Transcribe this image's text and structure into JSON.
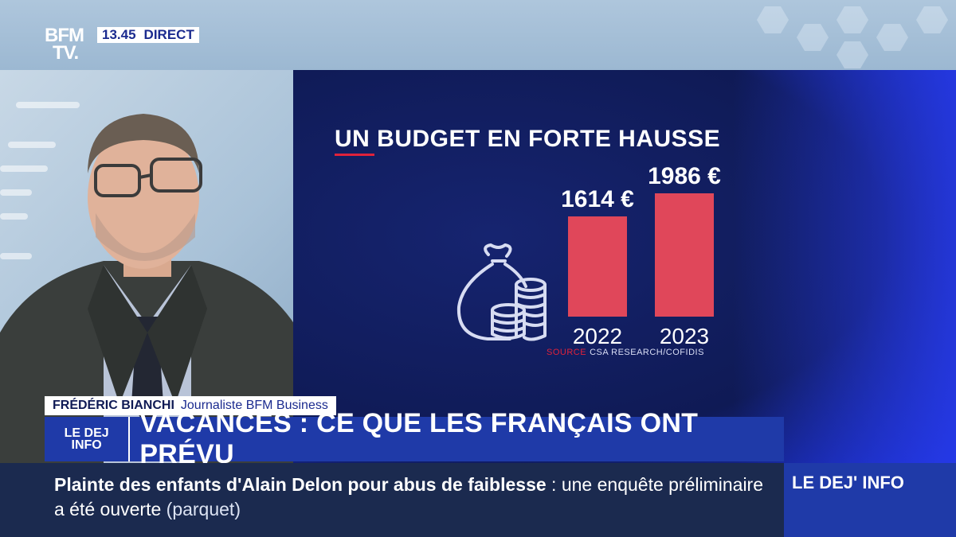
{
  "channel": {
    "logo_line1": "BFM",
    "logo_line2": "TV.",
    "time": "13.45",
    "live_label": "DIRECT"
  },
  "graphic": {
    "title": "UN BUDGET EN FORTE HAUSSE",
    "icon": "money-bag-coins-icon",
    "source_label": "SOURCE",
    "source_text": "CSA RESEARCH/COFIDIS"
  },
  "chart_data": {
    "type": "bar",
    "title": "UN BUDGET EN FORTE HAUSSE",
    "categories": [
      "2022",
      "2023"
    ],
    "values": [
      1614,
      1986
    ],
    "value_labels": [
      "1614 €",
      "1986 €"
    ],
    "bar_color": "#e0475a",
    "grid": false
  },
  "lower_third": {
    "name": "FRÉDÉRIC BIANCHI",
    "role": "Journaliste BFM Business"
  },
  "program": {
    "logo_line1": "LE DEJ",
    "logo_line2": "INFO"
  },
  "headline": "VACANCES : CE QUE LES FRANÇAIS ONT PRÉVU",
  "ticker": {
    "bold": "Plainte des enfants d'Alain Delon pour abus de faiblesse",
    "sep": " : ",
    "normal": "une enquête préliminaire a été ouverte",
    "paren": "(parquet)",
    "program_label": "LE DEJ' INFO"
  },
  "colors": {
    "accent_red": "#e0223b",
    "brand_blue": "#1f3aa8",
    "panel_navy": "#0f1a55"
  }
}
